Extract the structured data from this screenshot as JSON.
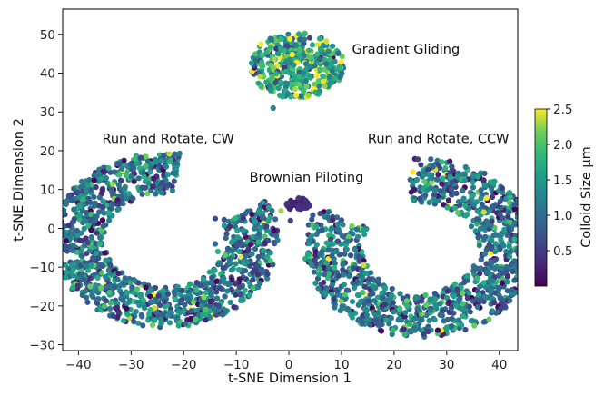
{
  "chart_data": {
    "type": "scatter",
    "title": "",
    "xlabel": "t-SNE Dimension 1",
    "ylabel": "t-SNE Dimension 2",
    "xlim": [
      -43,
      43.5
    ],
    "ylim": [
      -31.5,
      56.5
    ],
    "x_ticks": [
      -40,
      -30,
      -20,
      -10,
      0,
      10,
      20,
      30,
      40
    ],
    "y_ticks": [
      -30,
      -20,
      -10,
      0,
      10,
      20,
      30,
      40,
      50
    ],
    "x_tick_labels": [
      "−40",
      "−30",
      "−20",
      "−10",
      "0",
      "10",
      "20",
      "30",
      "40"
    ],
    "y_tick_labels": [
      "−30",
      "−20",
      "−10",
      "0",
      "10",
      "20",
      "30",
      "40",
      "50"
    ],
    "grid": false,
    "colorbar": {
      "label": "Colloid Size μm",
      "colormap": "viridis",
      "range": [
        0.0,
        2.5
      ],
      "ticks": [
        0.5,
        1.0,
        1.5,
        2.0,
        2.5
      ],
      "tick_labels": [
        "0.5",
        "1.0",
        "1.5",
        "2.0",
        "2.5"
      ]
    },
    "annotations": [
      {
        "text": "Gradient Gliding",
        "x": 12,
        "y": 45
      },
      {
        "text": "Run and Rotate, CW",
        "x": -35.5,
        "y": 22
      },
      {
        "text": "Run and Rotate, CCW",
        "x": 15,
        "y": 22
      },
      {
        "text": "Brownian Piloting",
        "x": -7.5,
        "y": 12
      }
    ],
    "clusters": [
      {
        "name": "Run and Rotate, CW",
        "shape": "crescent",
        "center": [
          -23.5,
          -3
        ],
        "outer_radius": 22.5,
        "inner_radius": 12,
        "gap_center_deg": 55,
        "gap_width_deg": 55,
        "stretch_x": 0.96,
        "n_points": 1250,
        "size_mean": 1.1
      },
      {
        "name": "Run and Rotate, CCW",
        "shape": "crescent",
        "center": [
          25,
          -5
        ],
        "outer_radius": 23,
        "inner_radius": 11.5,
        "gap_center_deg": 125,
        "gap_width_deg": 55,
        "stretch_x": 0.96,
        "n_points": 1250,
        "size_mean": 1.1
      },
      {
        "name": "Gradient Gliding",
        "shape": "blob",
        "center": [
          1.5,
          42
        ],
        "radius_x": 9,
        "radius_y": 8.5,
        "n_points": 420,
        "size_mean": 1.6
      },
      {
        "name": "Brownian Piloting",
        "shape": "blob",
        "center": [
          1.8,
          6.2
        ],
        "radius_x": 2.4,
        "radius_y": 1.6,
        "n_points": 35,
        "size_mean": 0.3
      }
    ],
    "outliers": [
      {
        "x": -8.5,
        "y": -9,
        "size": 1.6
      },
      {
        "x": -8.2,
        "y": -8.5,
        "size": 1.4
      },
      {
        "x": -14,
        "y": -4,
        "size": 0.9
      },
      {
        "x": -13,
        "y": -9,
        "size": 1.1
      },
      {
        "x": -1.5,
        "y": 4.5,
        "size": 2.3
      },
      {
        "x": 0.3,
        "y": 2,
        "size": 0.6
      },
      {
        "x": 10,
        "y": -15,
        "size": 0.8
      },
      {
        "x": 10.5,
        "y": -14.5,
        "size": 1.5
      },
      {
        "x": -14,
        "y": 2.5,
        "size": 0.7
      },
      {
        "x": -13.5,
        "y": -6,
        "size": 1.8
      },
      {
        "x": 2,
        "y": 37,
        "size": 2.1
      },
      {
        "x": -3,
        "y": 31,
        "size": 1.2
      }
    ]
  }
}
